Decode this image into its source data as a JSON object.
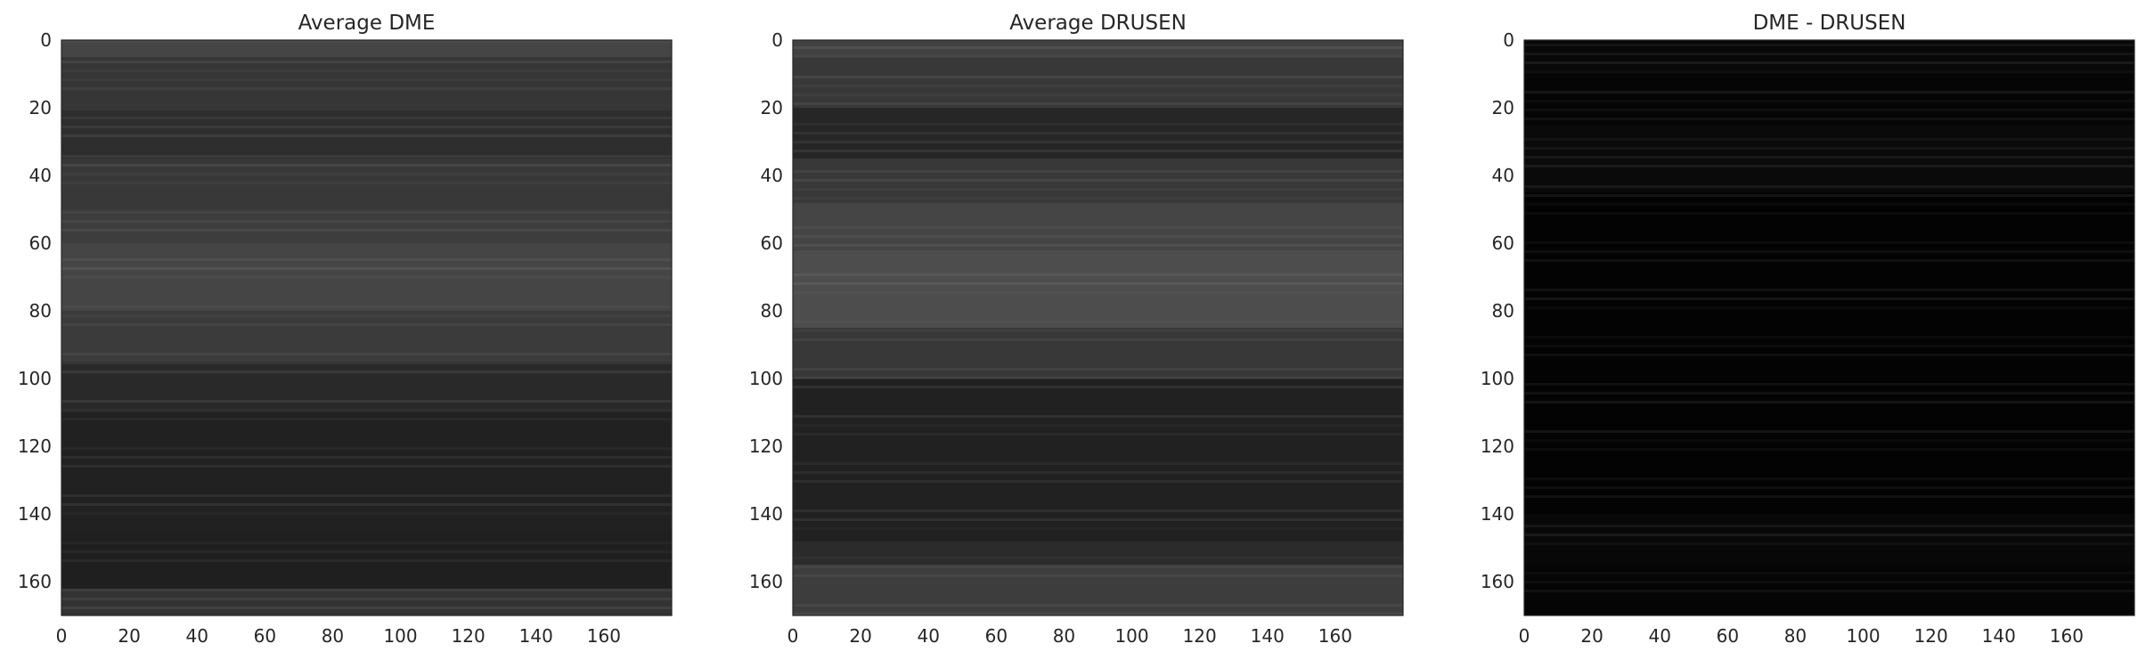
{
  "chart_data": [
    {
      "type": "heatmap",
      "title": "Average DME",
      "xlabel": "",
      "ylabel": "",
      "x_ticks": [
        0,
        20,
        40,
        60,
        80,
        100,
        120,
        140,
        160
      ],
      "y_ticks": [
        0,
        20,
        40,
        60,
        80,
        100,
        120,
        140,
        160
      ],
      "xlim": [
        0,
        180
      ],
      "ylim": [
        170,
        0
      ],
      "colormap": "gray",
      "grid": false,
      "bands": [
        {
          "y": [
            0,
            5
          ],
          "intensity": 0.27
        },
        {
          "y": [
            5,
            20
          ],
          "intensity": 0.21
        },
        {
          "y": [
            20,
            35
          ],
          "intensity": 0.18
        },
        {
          "y": [
            35,
            50
          ],
          "intensity": 0.22
        },
        {
          "y": [
            50,
            60
          ],
          "intensity": 0.24
        },
        {
          "y": [
            60,
            80
          ],
          "intensity": 0.27
        },
        {
          "y": [
            80,
            95
          ],
          "intensity": 0.23
        },
        {
          "y": [
            95,
            110
          ],
          "intensity": 0.16
        },
        {
          "y": [
            110,
            145
          ],
          "intensity": 0.13
        },
        {
          "y": [
            145,
            162
          ],
          "intensity": 0.12
        },
        {
          "y": [
            162,
            170
          ],
          "intensity": 0.2
        }
      ]
    },
    {
      "type": "heatmap",
      "title": "Average DRUSEN",
      "xlabel": "",
      "ylabel": "",
      "x_ticks": [
        0,
        20,
        40,
        60,
        80,
        100,
        120,
        140,
        160
      ],
      "y_ticks": [
        0,
        20,
        40,
        60,
        80,
        100,
        120,
        140,
        160
      ],
      "xlim": [
        0,
        180
      ],
      "ylim": [
        170,
        0
      ],
      "colormap": "gray",
      "grid": false,
      "bands": [
        {
          "y": [
            0,
            5
          ],
          "intensity": 0.26
        },
        {
          "y": [
            5,
            20
          ],
          "intensity": 0.22
        },
        {
          "y": [
            20,
            35
          ],
          "intensity": 0.15
        },
        {
          "y": [
            35,
            48
          ],
          "intensity": 0.22
        },
        {
          "y": [
            48,
            62
          ],
          "intensity": 0.27
        },
        {
          "y": [
            62,
            85
          ],
          "intensity": 0.3
        },
        {
          "y": [
            85,
            100
          ],
          "intensity": 0.22
        },
        {
          "y": [
            100,
            148
          ],
          "intensity": 0.13
        },
        {
          "y": [
            148,
            155
          ],
          "intensity": 0.17
        },
        {
          "y": [
            155,
            170
          ],
          "intensity": 0.24
        }
      ]
    },
    {
      "type": "heatmap",
      "title": "DME - DRUSEN",
      "xlabel": "",
      "ylabel": "",
      "x_ticks": [
        0,
        20,
        40,
        60,
        80,
        100,
        120,
        140,
        160
      ],
      "y_ticks": [
        0,
        20,
        40,
        60,
        80,
        100,
        120,
        140,
        160
      ],
      "xlim": [
        0,
        180
      ],
      "ylim": [
        170,
        0
      ],
      "colormap": "gray",
      "grid": false,
      "bands": [
        {
          "y": [
            0,
            10
          ],
          "intensity": 0.03
        },
        {
          "y": [
            10,
            25
          ],
          "intensity": 0.02
        },
        {
          "y": [
            25,
            45
          ],
          "intensity": 0.04
        },
        {
          "y": [
            45,
            140
          ],
          "intensity": 0.01
        },
        {
          "y": [
            140,
            155
          ],
          "intensity": 0.03
        },
        {
          "y": [
            155,
            170
          ],
          "intensity": 0.02
        }
      ]
    }
  ]
}
